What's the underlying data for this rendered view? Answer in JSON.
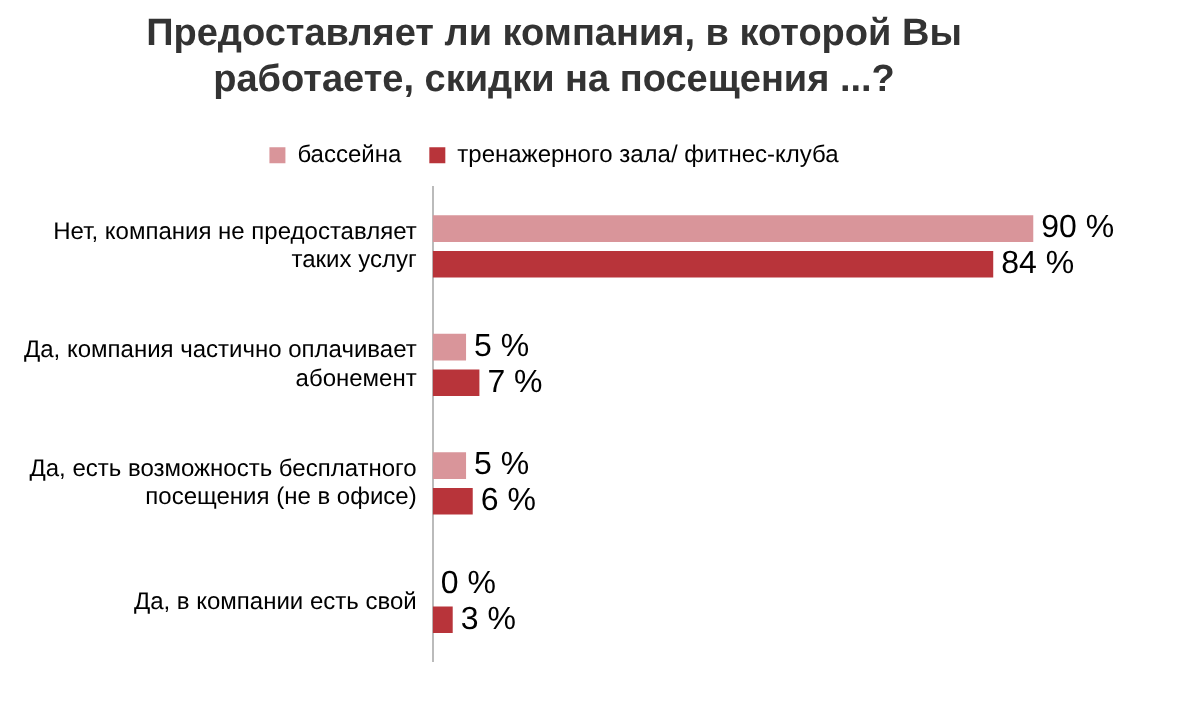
{
  "chart_data": {
    "type": "bar",
    "orientation": "horizontal",
    "title": "Предоставляет ли компания, в которой Вы работаете, скидки на посещения ...?",
    "categories": [
      "Нет, компания не предоставляет таких услуг",
      "Да, компания частично оплачивает абонемент",
      "Да, есть возможность бесплатного посещения (не в офисе)",
      "Да, в компании есть свой"
    ],
    "series": [
      {
        "name": "бассейна",
        "color": "#d9959a",
        "values": [
          90,
          5,
          5,
          0
        ],
        "value_labels": [
          "90 %",
          "5 %",
          "5 %",
          "0 %"
        ]
      },
      {
        "name": "тренажерного зала/ фитнес-клуба",
        "color": "#b8343a",
        "values": [
          84,
          7,
          6,
          3
        ],
        "value_labels": [
          "84 %",
          "7 %",
          "6 %",
          "3 %"
        ]
      }
    ],
    "legend": "top",
    "grid": false,
    "tick_labels": "y"
  }
}
